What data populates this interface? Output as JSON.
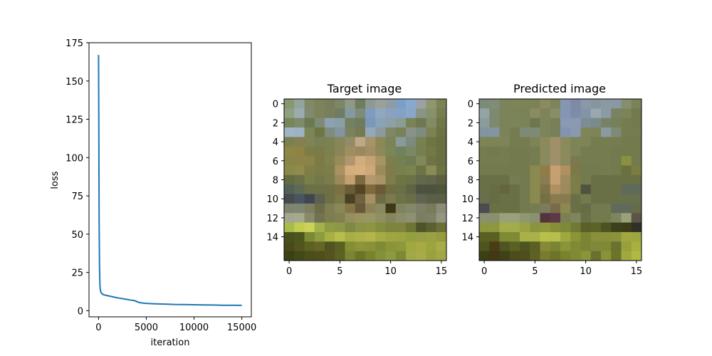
{
  "chart_data": [
    {
      "type": "line",
      "title": "",
      "xlabel": "iteration",
      "ylabel": "loss",
      "xlim": [
        -1000,
        16000
      ],
      "ylim": [
        -4,
        175
      ],
      "xticks": [
        0,
        5000,
        10000,
        15000
      ],
      "xtick_labels": [
        "0",
        "5000",
        "10000",
        "15000"
      ],
      "yticks": [
        0,
        25,
        50,
        75,
        100,
        125,
        150,
        175
      ],
      "ytick_labels": [
        "0",
        "25",
        "50",
        "75",
        "100",
        "125",
        "150",
        "175"
      ],
      "grid": false,
      "color": "#1f77b4",
      "x": [
        0,
        30,
        60,
        100,
        150,
        200,
        300,
        500,
        800,
        1200,
        1700,
        2200,
        2800,
        3300,
        3800,
        4200,
        4600,
        5000,
        6000,
        7000,
        8000,
        9000,
        10000,
        11000,
        12000,
        13000,
        14000,
        15000
      ],
      "y": [
        167,
        120,
        60,
        28,
        16,
        13,
        11.5,
        10.5,
        10,
        9.5,
        8.8,
        8.2,
        7.6,
        7,
        6.5,
        5.5,
        5,
        4.8,
        4.5,
        4.3,
        4.1,
        4,
        3.9,
        3.8,
        3.7,
        3.6,
        3.6,
        3.5
      ]
    },
    {
      "type": "heatmap",
      "title": "Target image",
      "xticks": [
        0,
        5,
        10,
        15
      ],
      "xtick_labels": [
        "0",
        "5",
        "10",
        "15"
      ],
      "yticks": [
        0,
        2,
        4,
        6,
        8,
        10,
        12,
        14
      ],
      "ytick_labels": [
        "0",
        "2",
        "4",
        "6",
        "8",
        "10",
        "12",
        "14"
      ],
      "grid": false,
      "pixels": [
        [
          "#8a9672",
          "#93a49a",
          "#7e8a66",
          "#7d8259",
          "#777e5d",
          "#7e8569",
          "#8f9a86",
          "#6e7d5f",
          "#8c9a94",
          "#9aa19a",
          "#8f9ca4",
          "#7aa0c8",
          "#88a8d0",
          "#9aa2a8",
          "#8f966f",
          "#7b8354"
        ],
        [
          "#8ea080",
          "#9bacb0",
          "#7f8a6e",
          "#7e8259",
          "#797f5c",
          "#6f7c62",
          "#8699a0",
          "#7d8c78",
          "#7f9cc0",
          "#8fa8c0",
          "#8aa2c0",
          "#84a2c8",
          "#8aa6c8",
          "#8a9484",
          "#88926a",
          "#767d50"
        ],
        [
          "#788758",
          "#7e8a6a",
          "#6b7850",
          "#7d8a74",
          "#8da2b0",
          "#8aa0a8",
          "#748060",
          "#6e7b5e",
          "#7c98b8",
          "#89a2b8",
          "#8da0a6",
          "#8b9c94",
          "#7a8258",
          "#6f7850",
          "#828b63",
          "#6f7649"
        ],
        [
          "#a0b4c8",
          "#9fb2c4",
          "#7b8556",
          "#6d7642",
          "#7e8c80",
          "#8494a0",
          "#7c8260",
          "#747a52",
          "#93a8b8",
          "#8c9aa0",
          "#7e8864",
          "#79815a",
          "#8a9288",
          "#7d8b80",
          "#7c8252",
          "#6e7243"
        ],
        [
          "#7a8150",
          "#857f51",
          "#7e8456",
          "#778056",
          "#7c8150",
          "#86855c",
          "#938b68",
          "#bda888",
          "#a49468",
          "#8b8858",
          "#7c8256",
          "#8a9a98",
          "#7c8a80",
          "#77804e",
          "#6f7542",
          "#6a6e40"
        ],
        [
          "#8f8646",
          "#8d8444",
          "#7e7c46",
          "#7a7b48",
          "#7c8051",
          "#8a8559",
          "#a08e60",
          "#9c8860",
          "#a28e64",
          "#8c8858",
          "#7a8558",
          "#71805e",
          "#7c8864",
          "#758052",
          "#737848",
          "#6c7040"
        ],
        [
          "#8a8448",
          "#8c8446",
          "#8a8448",
          "#7e7a44",
          "#80824e",
          "#978a58",
          "#b0966c",
          "#d0ac7e",
          "#c6a472",
          "#a59464",
          "#7e7e4c",
          "#738052",
          "#6e7c54",
          "#838858",
          "#6e7443",
          "#6a6f42"
        ],
        [
          "#8a8a48",
          "#8e8b4c",
          "#7f7e48",
          "#7a7c48",
          "#7b7d4a",
          "#a99260",
          "#d4ae7c",
          "#d8b080",
          "#cfa87a",
          "#9c8a5a",
          "#7e7c48",
          "#77804e",
          "#7b844e",
          "#6c7447",
          "#8a8c54",
          "#6d7244"
        ],
        [
          "#656a40",
          "#6b7048",
          "#7a7e48",
          "#74774a",
          "#7a7c4a",
          "#9a8a5a",
          "#c4a070",
          "#7a6a3c",
          "#b4986c",
          "#a89464",
          "#7e7c4c",
          "#6e7444",
          "#6c7248",
          "#62684a",
          "#626648",
          "#5c6040"
        ],
        [
          "#52605a",
          "#5e6a54",
          "#6c7048",
          "#6e7047",
          "#6e7044",
          "#7a7044",
          "#6a5c34",
          "#544624",
          "#7e6a3c",
          "#6a5a36",
          "#6e6e40",
          "#6a7046",
          "#5f6446",
          "#4c5240",
          "#4d5240",
          "#50563c"
        ],
        [
          "#444c50",
          "#4a5460",
          "#3e4650",
          "#5c6050",
          "#6e7044",
          "#7c7848",
          "#4a4024",
          "#6e6240",
          "#a89064",
          "#6e6a44",
          "#7a7a4c",
          "#6e7248",
          "#6a6e48",
          "#5e6450",
          "#5a6048",
          "#5a6046"
        ],
        [
          "#7e8470",
          "#7d8672",
          "#7c8060",
          "#6e6c48",
          "#7e7e52",
          "#8a8858",
          "#84744a",
          "#665838",
          "#8e8058",
          "#8a8a60",
          "#3e3818",
          "#80845c",
          "#84886a",
          "#7c8068",
          "#7a7a5a",
          "#8a8e76"
        ],
        [
          "#a4a690",
          "#a6aa8c",
          "#888a6c",
          "#707250",
          "#7c7e50",
          "#828050",
          "#968e5e",
          "#9c9460",
          "#969864",
          "#8e9060",
          "#84865a",
          "#8c8c6c",
          "#8e9070",
          "#7c7e62",
          "#7e8066",
          "#949680"
        ],
        [
          "#a8bc4c",
          "#c2cc50",
          "#cad25a",
          "#a4b04c",
          "#8e9c44",
          "#8c9a48",
          "#7e8a44",
          "#8a9248",
          "#8e9440",
          "#848c40",
          "#7c8440",
          "#7e843a",
          "#6e7434",
          "#4e5428",
          "#5a6030",
          "#6a7034"
        ],
        [
          "#48501c",
          "#4a561e",
          "#7a8a34",
          "#8c9c3e",
          "#a8b044",
          "#b8be4a",
          "#a8ae44",
          "#aeb048",
          "#b4b44c",
          "#a6aa44",
          "#9ea644",
          "#9ca442",
          "#94a040",
          "#969e46",
          "#9aa044",
          "#969c3e"
        ],
        [
          "#4a4a18",
          "#525420",
          "#5c6020",
          "#646626",
          "#4e5420",
          "#5a6024",
          "#848e34",
          "#8c9638",
          "#8a9238",
          "#7e8a34",
          "#8a9438",
          "#8e9838",
          "#a0a840",
          "#a6aa40",
          "#9ca43c",
          "#a8ac48"
        ],
        [
          "#3c4014",
          "#424818",
          "#4a4e1a",
          "#504e1c",
          "#545420",
          "#5c6224",
          "#7a8434",
          "#6c7428",
          "#7a822c",
          "#84903a",
          "#8c9a40",
          "#7c8a34",
          "#a0a848",
          "#a8ac48",
          "#9aa040",
          "#a0a844"
        ]
      ]
    },
    {
      "type": "heatmap",
      "title": "Predicted image",
      "xticks": [
        0,
        5,
        10,
        15
      ],
      "xtick_labels": [
        "0",
        "5",
        "10",
        "15"
      ],
      "yticks": [
        0,
        2,
        4,
        6,
        8,
        10,
        12,
        14
      ],
      "ytick_labels": [
        "0",
        "2",
        "4",
        "6",
        "8",
        "10",
        "12",
        "14"
      ],
      "grid": false,
      "pixels": [
        [
          "#7c8a7a",
          "#7e8c78",
          "#7a8458",
          "#7c8458",
          "#7c8456",
          "#7a8258",
          "#8a8c60",
          "#7c8458",
          "#8496b0",
          "#808aa8",
          "#8a98a8",
          "#8696a0",
          "#8a9aa4",
          "#8a98a4",
          "#868e70",
          "#7a8258"
        ],
        [
          "#94a4a4",
          "#7e8a70",
          "#7a8458",
          "#7a8458",
          "#7a8256",
          "#8a8c60",
          "#7e8458",
          "#868e6c",
          "#8496b8",
          "#7e8ca8",
          "#8494a8",
          "#9aa8ae",
          "#8a9aa6",
          "#7a8264",
          "#7a8458",
          "#727a4e"
        ],
        [
          "#8a9c9c",
          "#7e8a70",
          "#7a8458",
          "#7a8458",
          "#7a8458",
          "#6e7650",
          "#7c8458",
          "#78805a",
          "#8a9ab4",
          "#8a9ab2",
          "#7e8c98",
          "#7a8a88",
          "#7a8266",
          "#76805a",
          "#747c50",
          "#727a4e"
        ],
        [
          "#8294a0",
          "#8494a0",
          "#7a8458",
          "#747c50",
          "#7e8a78",
          "#7e8a78",
          "#7e8458",
          "#76805a",
          "#8494b0",
          "#8a98b0",
          "#7e8658",
          "#7c8458",
          "#8a9aa0",
          "#7e8a78",
          "#747c50",
          "#747c50"
        ],
        [
          "#7c8458",
          "#7c8458",
          "#7c8458",
          "#747c50",
          "#747c50",
          "#7c8458",
          "#8a8a5c",
          "#a0906a",
          "#8a8a5c",
          "#7c8458",
          "#7c8458",
          "#747c50",
          "#747c50",
          "#747c50",
          "#727a4e",
          "#727a4e"
        ],
        [
          "#747c50",
          "#727a4e",
          "#747c50",
          "#727a4e",
          "#727a4e",
          "#747c50",
          "#8a8a5c",
          "#a0906a",
          "#8a8a5c",
          "#7c8458",
          "#747c50",
          "#747c50",
          "#747c50",
          "#727a4e",
          "#727a4e",
          "#727a4e"
        ],
        [
          "#747c50",
          "#747c50",
          "#747c50",
          "#727a4e",
          "#727a4e",
          "#747c50",
          "#8a8a5c",
          "#a0906a",
          "#8a8a5c",
          "#7c7850",
          "#747c50",
          "#747c50",
          "#747c50",
          "#727a4e",
          "#8a9040",
          "#727a4e"
        ],
        [
          "#727a4e",
          "#727a4e",
          "#727a4e",
          "#727a4e",
          "#727a4e",
          "#8a8a50",
          "#907c48",
          "#c8a070",
          "#b09060",
          "#7c7848",
          "#727a4e",
          "#727a4e",
          "#747c50",
          "#727a4e",
          "#6a7040",
          "#7a7e40"
        ],
        [
          "#6a7046",
          "#6a7046",
          "#6a7046",
          "#747c50",
          "#727a4e",
          "#8a8a50",
          "#8a7c50",
          "#c4a070",
          "#a08a60",
          "#7c7e48",
          "#727a4e",
          "#6a7046",
          "#6a7046",
          "#6a7046",
          "#6a7046",
          "#6a7046"
        ],
        [
          "#6a7046",
          "#666c46",
          "#66663c",
          "#6a7046",
          "#727a4e",
          "#8a8a50",
          "#7c7448",
          "#b09060",
          "#9a8a5c",
          "#7c7e48",
          "#4e5440",
          "#6a7046",
          "#6a7046",
          "#6a7046",
          "#606a5a",
          "#606a5a"
        ],
        [
          "#66704c",
          "#666c46",
          "#6a7046",
          "#6a7046",
          "#727a4e",
          "#8a8a50",
          "#747044",
          "#8a7a50",
          "#8a7a50",
          "#6a7046",
          "#727a4e",
          "#6a7046",
          "#6a7046",
          "#6a7046",
          "#66704c",
          "#66704c"
        ],
        [
          "#4e4a52",
          "#6a7046",
          "#6a7046",
          "#6a7046",
          "#727a4e",
          "#747c50",
          "#7c7c5c",
          "#7a6a4c",
          "#8a8a50",
          "#6a7046",
          "#666c46",
          "#727a4e",
          "#727a4e",
          "#606a5a",
          "#606a5a",
          "#666c46"
        ],
        [
          "#8a9070",
          "#88906e",
          "#9aa07a",
          "#9aa07a",
          "#909670",
          "#8a9070",
          "#54343c",
          "#5c3848",
          "#7a8050",
          "#80865c",
          "#6a7046",
          "#727a4e",
          "#727a4e",
          "#7e845c",
          "#9aa07a",
          "#5c5448"
        ],
        [
          "#8e9640",
          "#8e9640",
          "#a2ac48",
          "#a2ac48",
          "#9aa244",
          "#8a943c",
          "#90983e",
          "#888e38",
          "#7e8a38",
          "#707a34",
          "#5a6028",
          "#5c6228",
          "#4c5222",
          "#3e4018",
          "#3c3c18",
          "#30302a"
        ],
        [
          "#5a6024",
          "#5a6024",
          "#7e8a34",
          "#808a34",
          "#a8b048",
          "#aab048",
          "#b8c04c",
          "#b6be4c",
          "#9ea83e",
          "#8a9438",
          "#7a8434",
          "#88903a",
          "#88903a",
          "#8a923a",
          "#a2a840",
          "#a0a63e"
        ],
        [
          "#4e5420",
          "#4a3c16",
          "#505420",
          "#5a6024",
          "#4e5420",
          "#5a6024",
          "#848a38",
          "#7a8434",
          "#8a9438",
          "#7e8a34",
          "#7a8434",
          "#80883a",
          "#7e8a34",
          "#6a7030",
          "#98a03c",
          "#a8b040"
        ],
        [
          "#3c4014",
          "#443814",
          "#3e4214",
          "#4a4e1a",
          "#504e1c",
          "#5c6224",
          "#7a7a30",
          "#6c7428",
          "#7a822c",
          "#7e8a34",
          "#8a9438",
          "#6a7030",
          "#8c9238",
          "#6c7428",
          "#a0a840",
          "#b0b846"
        ]
      ]
    }
  ]
}
